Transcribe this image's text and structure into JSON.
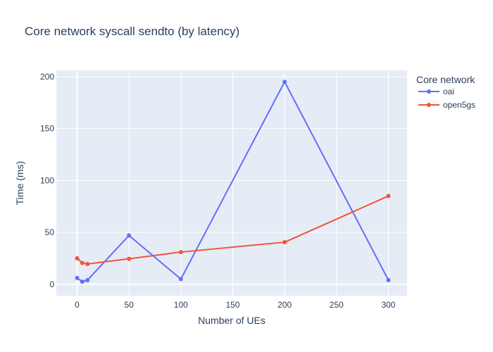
{
  "chart_data": {
    "type": "line",
    "title": "Core network syscall sendto (by latency)",
    "xlabel": "Number of UEs",
    "ylabel": "Time (ms)",
    "xlim": [
      -20,
      318
    ],
    "ylim": [
      -11,
      206
    ],
    "x_ticks": [
      0,
      50,
      100,
      150,
      200,
      250,
      300
    ],
    "y_ticks": [
      0,
      50,
      100,
      150,
      200
    ],
    "legend_title": "Core network",
    "legend_position": "right",
    "grid": true,
    "series": [
      {
        "name": "oai",
        "color": "#636efa",
        "x": [
          0,
          5,
          10,
          50,
          100,
          200,
          300
        ],
        "y": [
          6,
          2.5,
          4,
          47,
          5,
          195,
          4
        ]
      },
      {
        "name": "open5gs",
        "color": "#ef553b",
        "x": [
          0,
          5,
          10,
          50,
          100,
          200,
          300
        ],
        "y": [
          25,
          20.5,
          19.5,
          24.5,
          31,
          40.5,
          85
        ]
      }
    ]
  }
}
